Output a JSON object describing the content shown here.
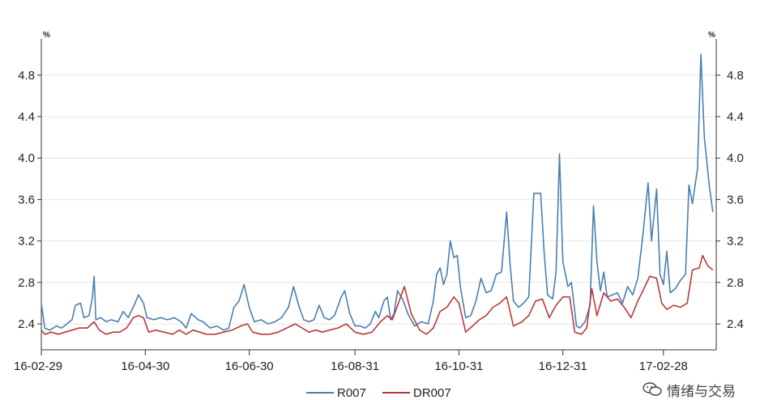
{
  "chart_data": {
    "type": "line",
    "y_unit_label": "%",
    "ylim": [
      2.15,
      5.15
    ],
    "yticks": [
      2.4,
      2.8,
      3.2,
      3.6,
      4.0,
      4.4,
      4.8
    ],
    "ytick_labels": [
      "2.4",
      "2.8",
      "3.2",
      "3.6",
      "4.0",
      "4.4",
      "4.8"
    ],
    "x_range": [
      "2016-02-29",
      "2017-03-31"
    ],
    "xticks": [
      "2016-02-29",
      "2016-04-30",
      "2016-06-30",
      "2016-08-31",
      "2016-10-31",
      "2016-12-31",
      "2017-02-28"
    ],
    "xtick_labels": [
      "16-02-29",
      "16-04-30",
      "16-06-30",
      "16-08-31",
      "16-10-31",
      "16-12-31",
      "17-02-28"
    ],
    "grid": "horizontal",
    "legend_position": "bottom-center",
    "series": [
      {
        "name": "R007",
        "color": "#4a7fb0",
        "points": [
          [
            "2016-02-29",
            2.6
          ],
          [
            "2016-03-02",
            2.36
          ],
          [
            "2016-03-05",
            2.34
          ],
          [
            "2016-03-09",
            2.38
          ],
          [
            "2016-03-12",
            2.36
          ],
          [
            "2016-03-15",
            2.4
          ],
          [
            "2016-03-18",
            2.44
          ],
          [
            "2016-03-20",
            2.58
          ],
          [
            "2016-03-23",
            2.6
          ],
          [
            "2016-03-25",
            2.46
          ],
          [
            "2016-03-28",
            2.48
          ],
          [
            "2016-03-30",
            2.66
          ],
          [
            "2016-03-31",
            2.86
          ],
          [
            "2016-04-01",
            2.44
          ],
          [
            "2016-04-04",
            2.46
          ],
          [
            "2016-04-07",
            2.42
          ],
          [
            "2016-04-10",
            2.44
          ],
          [
            "2016-04-14",
            2.42
          ],
          [
            "2016-04-17",
            2.52
          ],
          [
            "2016-04-20",
            2.46
          ],
          [
            "2016-04-24",
            2.6
          ],
          [
            "2016-04-26",
            2.68
          ],
          [
            "2016-04-29",
            2.6
          ],
          [
            "2016-05-01",
            2.46
          ],
          [
            "2016-05-05",
            2.44
          ],
          [
            "2016-05-09",
            2.46
          ],
          [
            "2016-05-13",
            2.44
          ],
          [
            "2016-05-17",
            2.46
          ],
          [
            "2016-05-21",
            2.42
          ],
          [
            "2016-05-24",
            2.36
          ],
          [
            "2016-05-27",
            2.5
          ],
          [
            "2016-05-31",
            2.44
          ],
          [
            "2016-06-03",
            2.42
          ],
          [
            "2016-06-07",
            2.36
          ],
          [
            "2016-06-11",
            2.38
          ],
          [
            "2016-06-15",
            2.34
          ],
          [
            "2016-06-18",
            2.36
          ],
          [
            "2016-06-21",
            2.56
          ],
          [
            "2016-06-24",
            2.62
          ],
          [
            "2016-06-27",
            2.78
          ],
          [
            "2016-06-30",
            2.56
          ],
          [
            "2016-07-03",
            2.42
          ],
          [
            "2016-07-07",
            2.44
          ],
          [
            "2016-07-11",
            2.4
          ],
          [
            "2016-07-15",
            2.42
          ],
          [
            "2016-07-19",
            2.46
          ],
          [
            "2016-07-23",
            2.56
          ],
          [
            "2016-07-26",
            2.76
          ],
          [
            "2016-07-29",
            2.58
          ],
          [
            "2016-08-01",
            2.44
          ],
          [
            "2016-08-04",
            2.42
          ],
          [
            "2016-08-07",
            2.44
          ],
          [
            "2016-08-10",
            2.58
          ],
          [
            "2016-08-13",
            2.46
          ],
          [
            "2016-08-16",
            2.44
          ],
          [
            "2016-08-19",
            2.48
          ],
          [
            "2016-08-23",
            2.66
          ],
          [
            "2016-08-25",
            2.72
          ],
          [
            "2016-08-28",
            2.5
          ],
          [
            "2016-08-31",
            2.38
          ],
          [
            "2016-09-03",
            2.38
          ],
          [
            "2016-09-06",
            2.36
          ],
          [
            "2016-09-09",
            2.4
          ],
          [
            "2016-09-12",
            2.52
          ],
          [
            "2016-09-14",
            2.46
          ],
          [
            "2016-09-17",
            2.62
          ],
          [
            "2016-09-19",
            2.66
          ],
          [
            "2016-09-21",
            2.44
          ],
          [
            "2016-09-23",
            2.5
          ],
          [
            "2016-09-25",
            2.72
          ],
          [
            "2016-09-28",
            2.64
          ],
          [
            "2016-10-01",
            2.5
          ],
          [
            "2016-10-05",
            2.38
          ],
          [
            "2016-10-09",
            2.42
          ],
          [
            "2016-10-13",
            2.4
          ],
          [
            "2016-10-16",
            2.62
          ],
          [
            "2016-10-18",
            2.88
          ],
          [
            "2016-10-20",
            2.94
          ],
          [
            "2016-10-22",
            2.78
          ],
          [
            "2016-10-24",
            2.88
          ],
          [
            "2016-10-26",
            3.2
          ],
          [
            "2016-10-28",
            3.04
          ],
          [
            "2016-10-30",
            3.06
          ],
          [
            "2016-11-01",
            2.74
          ],
          [
            "2016-11-04",
            2.46
          ],
          [
            "2016-11-07",
            2.48
          ],
          [
            "2016-11-10",
            2.62
          ],
          [
            "2016-11-13",
            2.84
          ],
          [
            "2016-11-16",
            2.7
          ],
          [
            "2016-11-19",
            2.72
          ],
          [
            "2016-11-22",
            2.88
          ],
          [
            "2016-11-25",
            2.9
          ],
          [
            "2016-11-28",
            3.48
          ],
          [
            "2016-11-30",
            2.98
          ],
          [
            "2016-12-02",
            2.62
          ],
          [
            "2016-12-05",
            2.56
          ],
          [
            "2016-12-08",
            2.6
          ],
          [
            "2016-12-11",
            2.66
          ],
          [
            "2016-12-14",
            3.66
          ],
          [
            "2016-12-18",
            3.66
          ],
          [
            "2016-12-20",
            3.1
          ],
          [
            "2016-12-22",
            2.68
          ],
          [
            "2016-12-25",
            2.64
          ],
          [
            "2016-12-27",
            2.9
          ],
          [
            "2016-12-29",
            4.04
          ],
          [
            "2016-12-31",
            3.0
          ],
          [
            "2017-01-03",
            2.76
          ],
          [
            "2017-01-05",
            2.8
          ],
          [
            "2017-01-08",
            2.38
          ],
          [
            "2017-01-10",
            2.36
          ],
          [
            "2017-01-13",
            2.42
          ],
          [
            "2017-01-16",
            2.58
          ],
          [
            "2017-01-18",
            3.54
          ],
          [
            "2017-01-20",
            3.0
          ],
          [
            "2017-01-22",
            2.72
          ],
          [
            "2017-01-24",
            2.9
          ],
          [
            "2017-01-26",
            2.66
          ],
          [
            "2017-01-29",
            2.68
          ],
          [
            "2017-02-01",
            2.7
          ],
          [
            "2017-02-04",
            2.6
          ],
          [
            "2017-02-07",
            2.76
          ],
          [
            "2017-02-10",
            2.68
          ],
          [
            "2017-02-13",
            2.84
          ],
          [
            "2017-02-16",
            3.26
          ],
          [
            "2017-02-19",
            3.76
          ],
          [
            "2017-02-21",
            3.2
          ],
          [
            "2017-02-24",
            3.7
          ],
          [
            "2017-02-26",
            2.88
          ],
          [
            "2017-02-28",
            2.78
          ],
          [
            "2017-03-02",
            3.1
          ],
          [
            "2017-03-04",
            2.7
          ],
          [
            "2017-03-07",
            2.74
          ],
          [
            "2017-03-10",
            2.82
          ],
          [
            "2017-03-13",
            2.88
          ],
          [
            "2017-03-15",
            3.74
          ],
          [
            "2017-03-17",
            3.56
          ],
          [
            "2017-03-20",
            3.9
          ],
          [
            "2017-03-22",
            5.0
          ],
          [
            "2017-03-24",
            4.2
          ],
          [
            "2017-03-27",
            3.72
          ],
          [
            "2017-03-29",
            3.48
          ]
        ]
      },
      {
        "name": "DR007",
        "color": "#b83a3a",
        "points": [
          [
            "2016-02-29",
            2.34
          ],
          [
            "2016-03-02",
            2.3
          ],
          [
            "2016-03-06",
            2.32
          ],
          [
            "2016-03-10",
            2.3
          ],
          [
            "2016-03-14",
            2.32
          ],
          [
            "2016-03-18",
            2.34
          ],
          [
            "2016-03-22",
            2.36
          ],
          [
            "2016-03-27",
            2.36
          ],
          [
            "2016-03-31",
            2.42
          ],
          [
            "2016-04-03",
            2.34
          ],
          [
            "2016-04-07",
            2.3
          ],
          [
            "2016-04-11",
            2.32
          ],
          [
            "2016-04-15",
            2.32
          ],
          [
            "2016-04-19",
            2.36
          ],
          [
            "2016-04-23",
            2.46
          ],
          [
            "2016-04-26",
            2.48
          ],
          [
            "2016-04-29",
            2.46
          ],
          [
            "2016-05-02",
            2.32
          ],
          [
            "2016-05-06",
            2.34
          ],
          [
            "2016-05-11",
            2.32
          ],
          [
            "2016-05-16",
            2.3
          ],
          [
            "2016-05-20",
            2.34
          ],
          [
            "2016-05-24",
            2.3
          ],
          [
            "2016-05-28",
            2.34
          ],
          [
            "2016-06-01",
            2.32
          ],
          [
            "2016-06-05",
            2.3
          ],
          [
            "2016-06-10",
            2.3
          ],
          [
            "2016-06-15",
            2.32
          ],
          [
            "2016-06-20",
            2.34
          ],
          [
            "2016-06-25",
            2.38
          ],
          [
            "2016-06-29",
            2.4
          ],
          [
            "2016-07-02",
            2.32
          ],
          [
            "2016-07-07",
            2.3
          ],
          [
            "2016-07-12",
            2.3
          ],
          [
            "2016-07-17",
            2.32
          ],
          [
            "2016-07-22",
            2.36
          ],
          [
            "2016-07-27",
            2.4
          ],
          [
            "2016-07-31",
            2.36
          ],
          [
            "2016-08-04",
            2.32
          ],
          [
            "2016-08-08",
            2.34
          ],
          [
            "2016-08-12",
            2.32
          ],
          [
            "2016-08-16",
            2.34
          ],
          [
            "2016-08-21",
            2.36
          ],
          [
            "2016-08-26",
            2.4
          ],
          [
            "2016-08-31",
            2.32
          ],
          [
            "2016-09-05",
            2.3
          ],
          [
            "2016-09-10",
            2.32
          ],
          [
            "2016-09-15",
            2.42
          ],
          [
            "2016-09-19",
            2.48
          ],
          [
            "2016-09-22",
            2.44
          ],
          [
            "2016-09-26",
            2.62
          ],
          [
            "2016-09-29",
            2.76
          ],
          [
            "2016-10-03",
            2.5
          ],
          [
            "2016-10-08",
            2.34
          ],
          [
            "2016-10-12",
            2.3
          ],
          [
            "2016-10-16",
            2.36
          ],
          [
            "2016-10-20",
            2.52
          ],
          [
            "2016-10-24",
            2.56
          ],
          [
            "2016-10-28",
            2.66
          ],
          [
            "2016-10-31",
            2.6
          ],
          [
            "2016-11-04",
            2.32
          ],
          [
            "2016-11-08",
            2.38
          ],
          [
            "2016-11-12",
            2.44
          ],
          [
            "2016-11-16",
            2.48
          ],
          [
            "2016-11-20",
            2.56
          ],
          [
            "2016-11-24",
            2.6
          ],
          [
            "2016-11-28",
            2.66
          ],
          [
            "2016-12-02",
            2.38
          ],
          [
            "2016-12-07",
            2.42
          ],
          [
            "2016-12-11",
            2.48
          ],
          [
            "2016-12-15",
            2.62
          ],
          [
            "2016-12-19",
            2.64
          ],
          [
            "2016-12-23",
            2.46
          ],
          [
            "2016-12-27",
            2.58
          ],
          [
            "2016-12-31",
            2.66
          ],
          [
            "2017-01-04",
            2.66
          ],
          [
            "2017-01-07",
            2.32
          ],
          [
            "2017-01-11",
            2.3
          ],
          [
            "2017-01-14",
            2.36
          ],
          [
            "2017-01-17",
            2.74
          ],
          [
            "2017-01-20",
            2.48
          ],
          [
            "2017-01-24",
            2.7
          ],
          [
            "2017-01-28",
            2.62
          ],
          [
            "2017-02-01",
            2.64
          ],
          [
            "2017-02-05",
            2.56
          ],
          [
            "2017-02-09",
            2.46
          ],
          [
            "2017-02-13",
            2.62
          ],
          [
            "2017-02-16",
            2.72
          ],
          [
            "2017-02-20",
            2.86
          ],
          [
            "2017-02-24",
            2.84
          ],
          [
            "2017-02-27",
            2.6
          ],
          [
            "2017-03-02",
            2.54
          ],
          [
            "2017-03-06",
            2.58
          ],
          [
            "2017-03-10",
            2.56
          ],
          [
            "2017-03-14",
            2.6
          ],
          [
            "2017-03-17",
            2.92
          ],
          [
            "2017-03-21",
            2.94
          ],
          [
            "2017-03-23",
            3.06
          ],
          [
            "2017-03-26",
            2.96
          ],
          [
            "2017-03-29",
            2.92
          ]
        ]
      }
    ]
  },
  "watermark": {
    "text": "情绪与交易",
    "icon": "wechat-bubble-icon"
  }
}
